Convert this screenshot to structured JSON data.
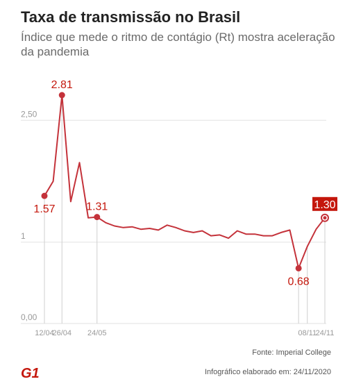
{
  "header": {
    "title": "Taxa de transmissão no Brasil",
    "subtitle": "Índice que mede o ritmo de contágio (Rt) mostra aceleração da pandemia"
  },
  "footer": {
    "source": "Fonte: Imperial College",
    "credit": "Infográfico elaborado em: 24/11/2020",
    "logo": "G1"
  },
  "colors": {
    "line": "#c4323a",
    "highlight_box": "#c4170c",
    "grid": "#e2e2e2",
    "axis_text": "#999999"
  },
  "chart_data": {
    "type": "line",
    "y_ticks": [
      {
        "value": 0,
        "label": "0,00"
      },
      {
        "value": 1,
        "label": "1"
      },
      {
        "value": 2.5,
        "label": "2,50"
      }
    ],
    "ylim": [
      0,
      2.95
    ],
    "x_ticks": [
      {
        "index": 0,
        "label": "12/04"
      },
      {
        "index": 2,
        "label": "26/04"
      },
      {
        "index": 6,
        "label": "24/05"
      },
      {
        "index": 30,
        "label": "08/11"
      },
      {
        "index": 32,
        "label": "24/11"
      }
    ],
    "series": [
      {
        "values": [
          1.57,
          1.75,
          2.81,
          1.5,
          1.98,
          1.3,
          1.31,
          1.24,
          1.2,
          1.18,
          1.19,
          1.16,
          1.17,
          1.15,
          1.21,
          1.18,
          1.14,
          1.12,
          1.14,
          1.08,
          1.09,
          1.05,
          1.14,
          1.1,
          1.1,
          1.08,
          1.08,
          1.12,
          1.15,
          0.68,
          0.95,
          1.16,
          1.3
        ]
      }
    ],
    "annotations": [
      {
        "index": 0,
        "label": "1.57",
        "position": "below"
      },
      {
        "index": 2,
        "label": "2.81",
        "position": "above"
      },
      {
        "index": 6,
        "label": "1.31",
        "position": "above"
      },
      {
        "index": 29,
        "label": "0.68",
        "position": "below"
      },
      {
        "index": 32,
        "label": "1.30",
        "position": "above-boxed"
      }
    ]
  }
}
